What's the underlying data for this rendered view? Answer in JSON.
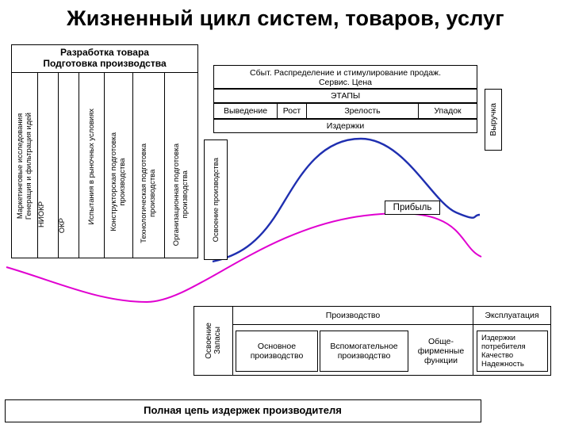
{
  "title": "Жизненный цикл систем, товаров, услуг",
  "development": {
    "header": [
      "Разработка товара",
      "Подготовка производства"
    ],
    "columns": [
      "Маркетинговые исследования\nГенерация и фильтрация идей",
      "НИОКР",
      "ОКР",
      "Испытания в рыночных условиях",
      "Конструкторская подготовка\nпроизводства",
      "Технологическая подготовка\nпроизводства",
      "Организационная подготовка\nпроизводства",
      "Освоение производства"
    ]
  },
  "market": {
    "sbyt": [
      "Сбыт. Распределение и стимулирование продаж.",
      "Сервис. Цена"
    ],
    "stages_label": "ЭТАПЫ",
    "stages": [
      "Выведение",
      "Рост",
      "Зрелость",
      "Упадок"
    ],
    "costs_label": "Издержки",
    "revenue_label": "Выручка",
    "profit_label": "Прибыль"
  },
  "production": {
    "side_label": "Освоение\nЗапасы",
    "production_label": "Производство",
    "operation_label": "Эксплуатация",
    "basic": "Основное\nпроизводство",
    "auxiliary": "Вспомогательное\nпроизводство",
    "general": "Обще-\nфирменные\nфункции",
    "consumer": [
      "Издержки",
      "потребителя",
      "Качество",
      "Надежность"
    ]
  },
  "footer": "Полная цепь издержек производителя",
  "colors": {
    "revenue_curve": "#1f2fb0",
    "cost_curve": "#e000d0"
  }
}
